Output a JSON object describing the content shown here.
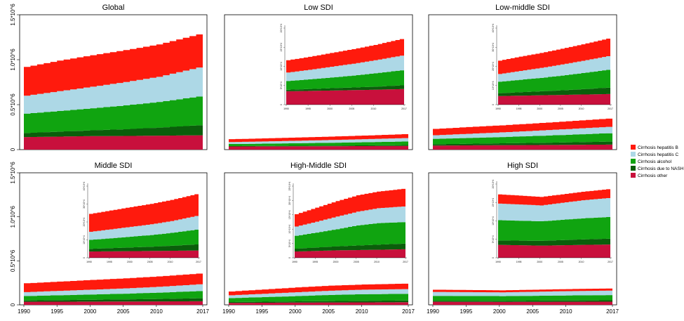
{
  "chart_data": {
    "type": "area",
    "stacked": true,
    "x": [
      1990,
      1995,
      2000,
      2005,
      2010,
      2017
    ],
    "x_tick_labels": [
      "1990",
      "1995",
      "2000",
      "2005",
      "2010",
      "2017"
    ],
    "y_tick_labels": [
      "0",
      "0.5*10^6",
      "1.0*10^6",
      "1.5*10^6"
    ],
    "ylim": [
      0,
      1500000
    ],
    "legend": {
      "position": "right",
      "entries": [
        {
          "name": "Cirrhosis hepatitis B",
          "color": "#ff1a0d"
        },
        {
          "name": "Cirrhosis hepatitis C",
          "color": "#add8e6"
        },
        {
          "name": "Cirrhosis alcohol",
          "color": "#10a410"
        },
        {
          "name": "Cirrhosis due to NASH",
          "color": "#0b5e0b"
        },
        {
          "name": "Cirrhosis other",
          "color": "#c8103c"
        }
      ]
    },
    "panels": [
      {
        "title": "Global",
        "inset": false,
        "series": [
          {
            "name": "Cirrhosis other",
            "values": [
              140000,
              145000,
              150000,
              152000,
              155000,
              160000
            ]
          },
          {
            "name": "Cirrhosis due to NASH",
            "values": [
              45000,
              55000,
              65000,
              75000,
              90000,
              115000
            ]
          },
          {
            "name": "Cirrhosis alcohol",
            "values": [
              215000,
              230000,
              245000,
              265000,
              285000,
              325000
            ]
          },
          {
            "name": "Cirrhosis hepatitis C",
            "values": [
              200000,
              220000,
              240000,
              260000,
              280000,
              330000
            ]
          },
          {
            "name": "Cirrhosis hepatitis B",
            "values": [
              320000,
              340000,
              350000,
              355000,
              360000,
              370000
            ]
          }
        ]
      },
      {
        "title": "Low SDI",
        "inset": true,
        "inset_x_tick_labels": [
          "1990",
          "1995",
          "2000",
          "2005",
          "2010",
          "2017"
        ],
        "inset_y_tick_labels": [
          "0",
          "5*10^4",
          "10*10^4",
          "15*10^4",
          "20*10^4"
        ],
        "inset_ylim": [
          0,
          200000
        ],
        "series": [
          {
            "name": "Cirrhosis other",
            "values": [
              35000,
              36000,
              37000,
              38000,
              39000,
              41000
            ]
          },
          {
            "name": "Cirrhosis due to NASH",
            "values": [
              4000,
              5000,
              6000,
              7000,
              8000,
              10000
            ]
          },
          {
            "name": "Cirrhosis alcohol",
            "values": [
              23000,
              25000,
              28000,
              31000,
              35000,
              40000
            ]
          },
          {
            "name": "Cirrhosis hepatitis C",
            "values": [
              22000,
              25000,
              28000,
              31000,
              34000,
              39000
            ]
          },
          {
            "name": "Cirrhosis hepatitis B",
            "values": [
              32000,
              34000,
              36000,
              38000,
              40000,
              44000
            ]
          }
        ]
      },
      {
        "title": "Low-middle SDI",
        "inset": true,
        "inset_x_tick_labels": [
          "1990",
          "1995",
          "2000",
          "2005",
          "2010",
          "2017"
        ],
        "inset_y_tick_labels": [
          "0",
          "10*10^4",
          "20*10^4",
          "30*10^4",
          "40*10^4"
        ],
        "inset_ylim": [
          0,
          400000
        ],
        "series": [
          {
            "name": "Cirrhosis other",
            "values": [
              45000,
              47000,
              49000,
              51000,
              53000,
              56000
            ]
          },
          {
            "name": "Cirrhosis due to NASH",
            "values": [
              15000,
              18000,
              21000,
              24000,
              28000,
              34000
            ]
          },
          {
            "name": "Cirrhosis alcohol",
            "values": [
              60000,
              65000,
              70000,
              77000,
              84000,
              95000
            ]
          },
          {
            "name": "Cirrhosis hepatitis C",
            "values": [
              40000,
              46000,
              52000,
              58000,
              64000,
              72000
            ]
          },
          {
            "name": "Cirrhosis hepatitis B",
            "values": [
              70000,
              75000,
              78000,
              82000,
              86000,
              93000
            ]
          }
        ]
      },
      {
        "title": "Middle SDI",
        "inset": true,
        "inset_x_tick_labels": [
          "1990",
          "1995",
          "2000",
          "2005",
          "2010",
          "2017"
        ],
        "inset_y_tick_labels": [
          "0",
          "10*10^4",
          "20*10^4",
          "30*10^4",
          "40*10^4"
        ],
        "inset_ylim": [
          0,
          400000
        ],
        "series": [
          {
            "name": "Cirrhosis other",
            "values": [
              35000,
              36000,
              37000,
              38000,
              39000,
              41000
            ]
          },
          {
            "name": "Cirrhosis due to NASH",
            "values": [
              15000,
              18000,
              21000,
              24000,
              28000,
              35000
            ]
          },
          {
            "name": "Cirrhosis alcohol",
            "values": [
              50000,
              55000,
              60000,
              65000,
              72000,
              84000
            ]
          },
          {
            "name": "Cirrhosis hepatitis C",
            "values": [
              45000,
              50000,
              55000,
              60000,
              66000,
              78000
            ]
          },
          {
            "name": "Cirrhosis hepatitis B",
            "values": [
              100000,
              105000,
              110000,
              114000,
              118000,
              122000
            ]
          }
        ]
      },
      {
        "title": "High-Middle SDI",
        "inset": true,
        "inset_x_tick_labels": [
          "1990",
          "1995",
          "2000",
          "2005",
          "2010",
          "2017"
        ],
        "inset_y_tick_labels": [
          "0",
          "5*10^4",
          "10*10^4",
          "15*10^4",
          "20*10^4",
          "25*10^4"
        ],
        "inset_ylim": [
          0,
          250000
        ],
        "series": [
          {
            "name": "Cirrhosis other",
            "values": [
              22000,
              24000,
              26000,
              27000,
              28000,
              30000
            ]
          },
          {
            "name": "Cirrhosis due to NASH",
            "values": [
              10000,
              12000,
              14000,
              16000,
              18000,
              20000
            ]
          },
          {
            "name": "Cirrhosis alcohol",
            "values": [
              45000,
              52000,
              60000,
              70000,
              75000,
              75000
            ]
          },
          {
            "name": "Cirrhosis hepatitis C",
            "values": [
              32000,
              38000,
              44000,
              48000,
              52000,
              55000
            ]
          },
          {
            "name": "Cirrhosis hepatitis B",
            "values": [
              43000,
              49000,
              54000,
              57000,
              58000,
              62000
            ]
          }
        ]
      },
      {
        "title": "High SDI",
        "inset": true,
        "inset_x_tick_labels": [
          "1990",
          "1995",
          "2000",
          "2005",
          "2010",
          "2017"
        ],
        "inset_y_tick_labels": [
          "0",
          "5*10^4",
          "10*10^4",
          "15*10^4",
          "20*10^4"
        ],
        "inset_ylim": [
          0,
          200000
        ],
        "series": [
          {
            "name": "Cirrhosis other",
            "values": [
              35000,
              34000,
              33000,
              34000,
              35000,
              36000
            ]
          },
          {
            "name": "Cirrhosis due to NASH",
            "values": [
              12000,
              12500,
              13000,
              14000,
              15000,
              16000
            ]
          },
          {
            "name": "Cirrhosis alcohol",
            "values": [
              55000,
              54000,
              53000,
              55000,
              57000,
              59000
            ]
          },
          {
            "name": "Cirrhosis hepatitis C",
            "values": [
              45000,
              44000,
              43000,
              46000,
              49000,
              52000
            ]
          },
          {
            "name": "Cirrhosis hepatitis B",
            "values": [
              25000,
              24000,
              23000,
              23000,
              23000,
              24000
            ]
          }
        ]
      }
    ]
  }
}
